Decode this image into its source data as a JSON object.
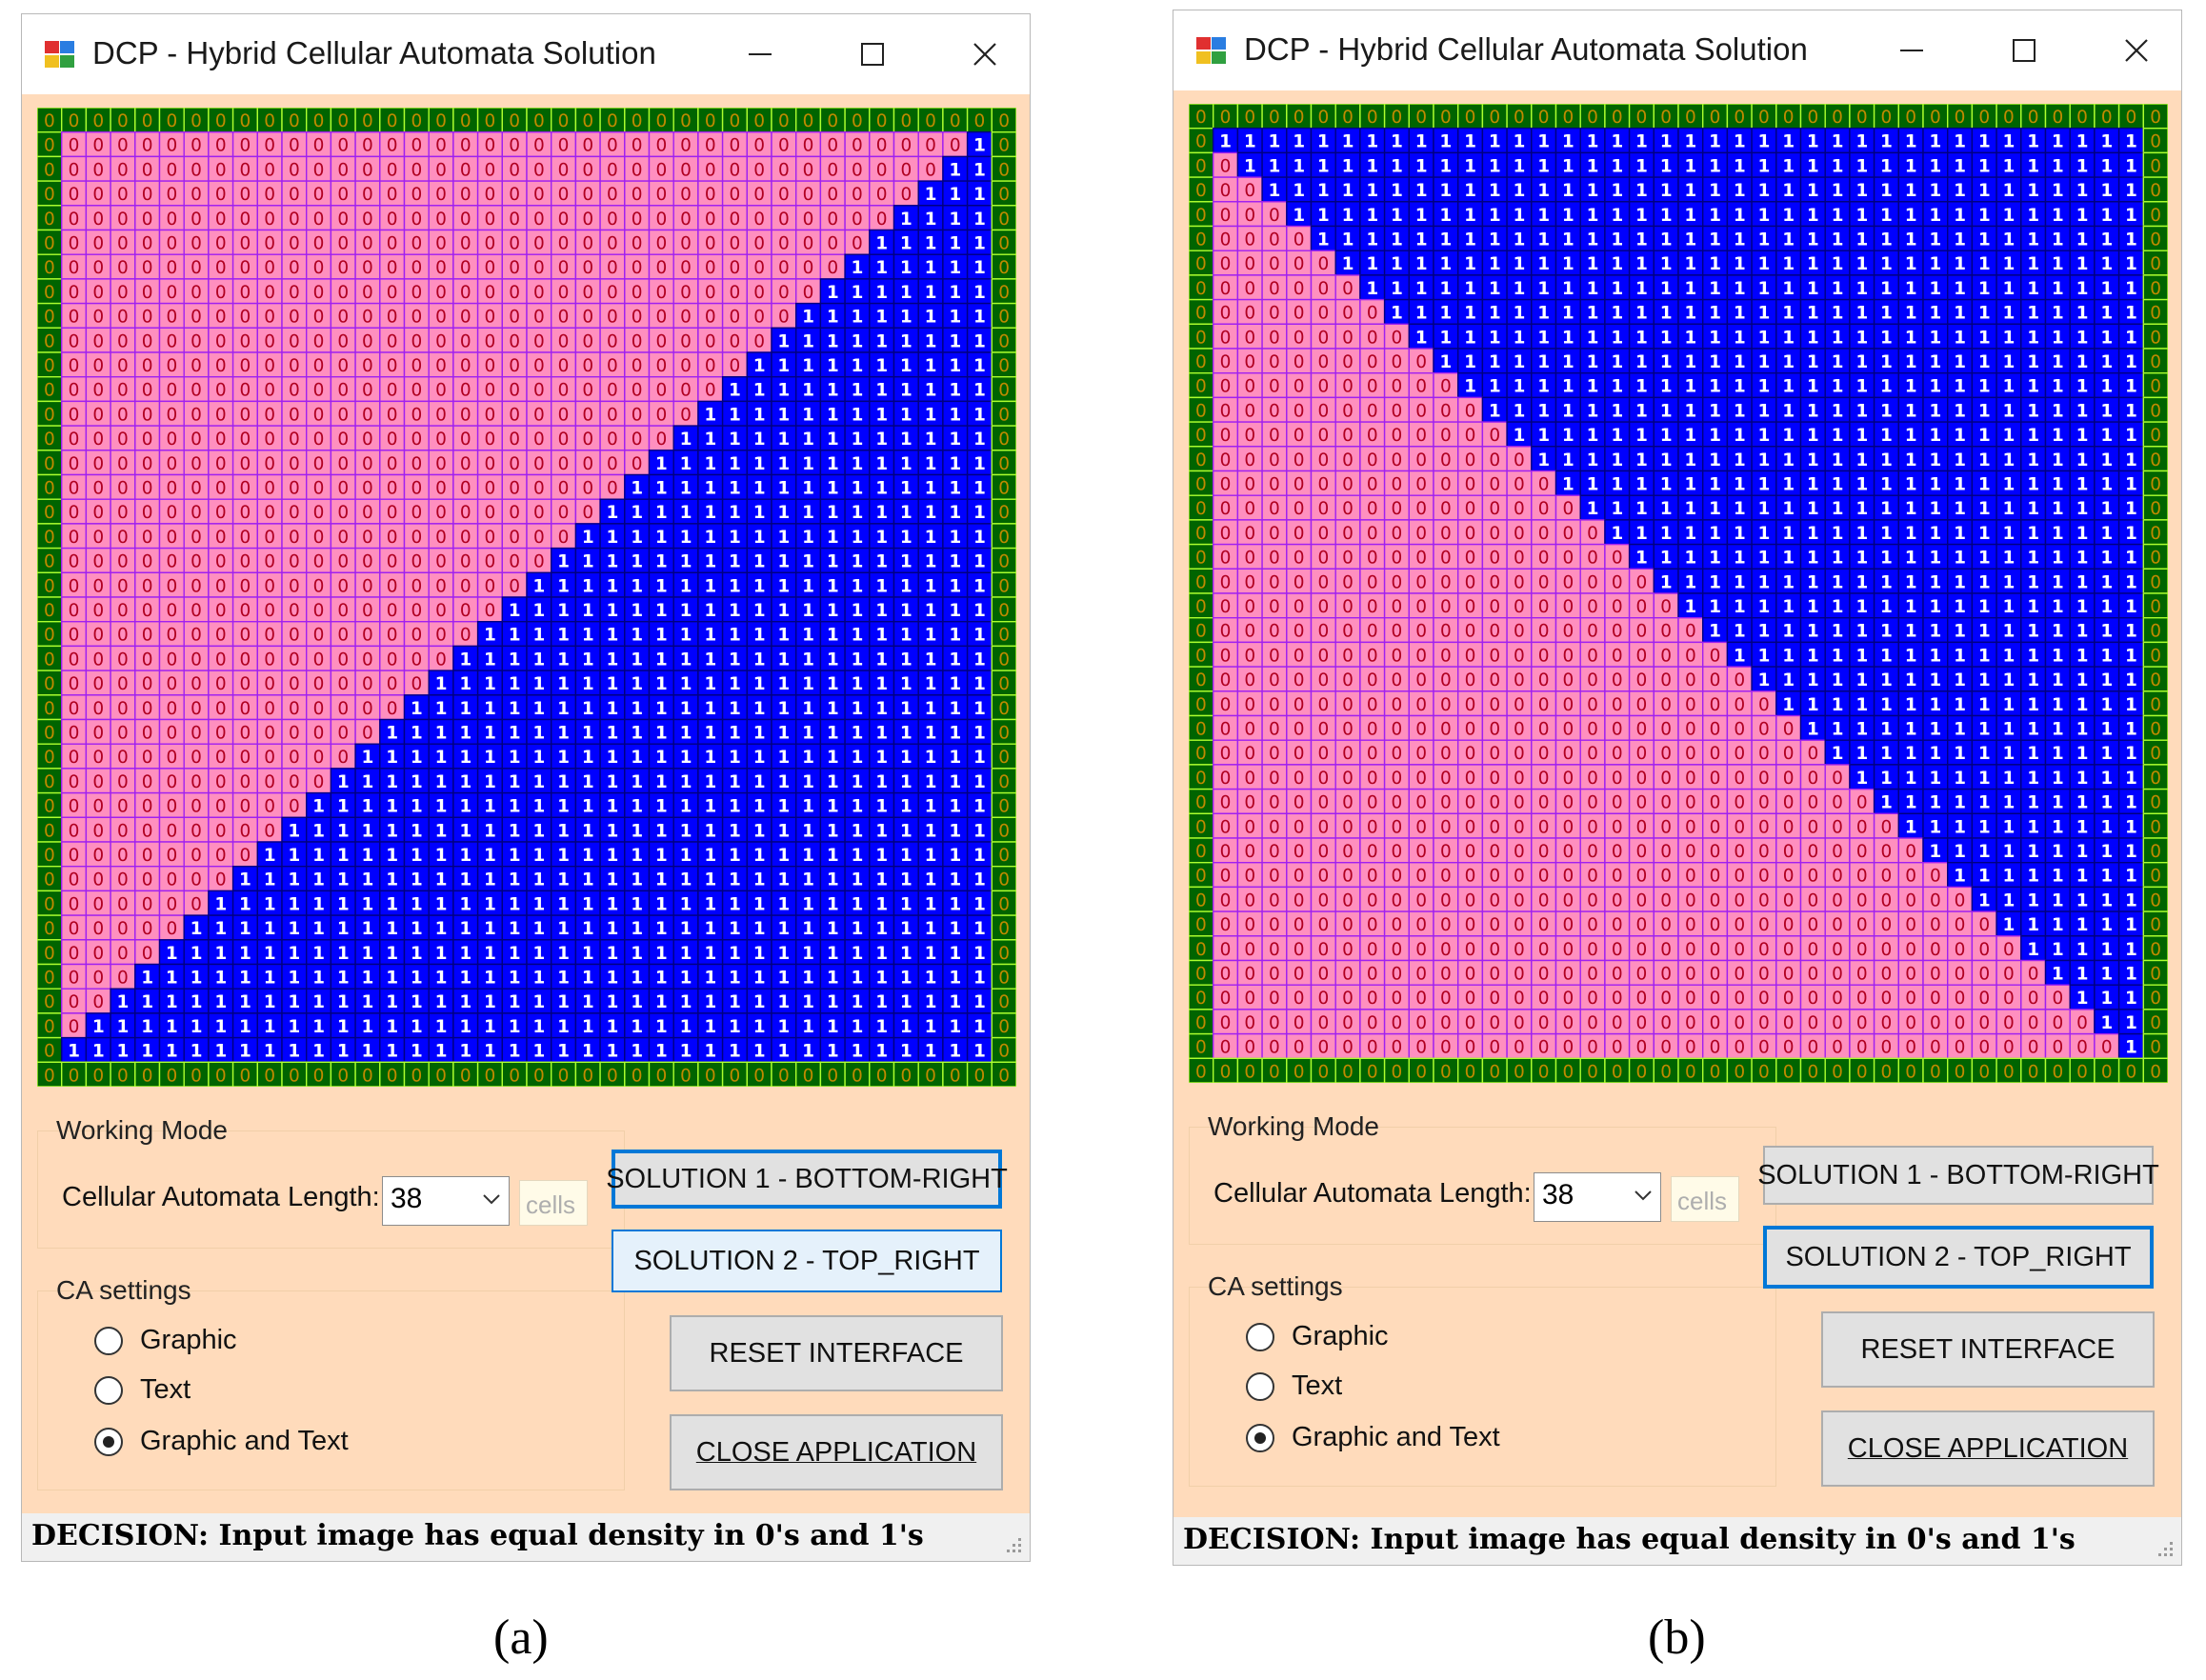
{
  "panels": [
    {
      "id": "a",
      "title": "DCP - Hybrid Cellular Automata Solution",
      "mode": "bottom-right",
      "caption": "(a)",
      "default_button": "solution1",
      "hover_button": "solution2"
    },
    {
      "id": "b",
      "title": "DCP - Hybrid Cellular Automata Solution",
      "mode": "top-right",
      "caption": "(b)",
      "default_button": "solution2",
      "hover_button": ""
    }
  ],
  "grid": {
    "length": 38,
    "zero_symbol": "0",
    "one_symbol": "1",
    "colors": {
      "zero_fill": "#ff8fbf",
      "zero_border": "#a020f0",
      "zero_text": "#b00020",
      "one_fill": "#0000ff",
      "one_border": "#000080",
      "one_text": "#ffffff",
      "boundary_fill": "#006400",
      "boundary_border": "#adff2f",
      "boundary_text": "#c08a00"
    }
  },
  "controls": {
    "working_mode_label": "Working Mode",
    "ca_length_label": "Cellular Automata Length:",
    "ca_length_value": "38",
    "cells_label": "cells",
    "ca_settings_label": "CA settings",
    "radios": [
      {
        "label": "Graphic",
        "checked": false
      },
      {
        "label": "Text",
        "checked": false
      },
      {
        "label": "Graphic and Text",
        "checked": true
      }
    ],
    "solution1_label": "SOLUTION 1 - BOTTOM-RIGHT",
    "solution2_label": "SOLUTION 2 - TOP_RIGHT",
    "reset_label": "RESET INTERFACE",
    "close_label": "CLOSE APPLICATION"
  },
  "status_text": "DECISION: Input image has equal density in 0's and 1's",
  "icons": {
    "app": "app-icon",
    "minimize": "minimize-icon",
    "maximize": "maximize-icon",
    "close": "close-icon",
    "dropdown": "chevron-down-icon",
    "grip": "resize-grip-icon"
  }
}
